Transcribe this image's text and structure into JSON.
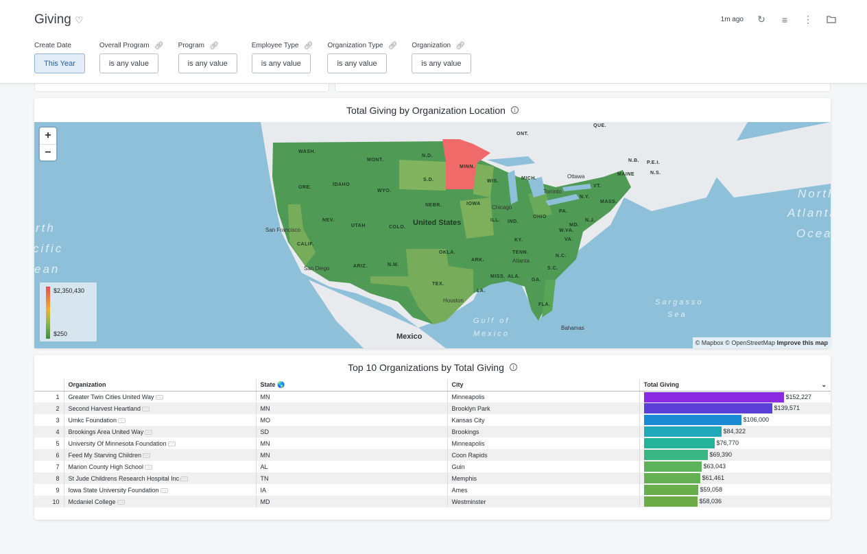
{
  "header": {
    "title": "Giving",
    "last_updated": "1m ago"
  },
  "filters": [
    {
      "label": "Create Date",
      "value": "This Year",
      "link": false,
      "active": true
    },
    {
      "label": "Overall Program",
      "value": "is any value",
      "link": true,
      "active": false
    },
    {
      "label": "Program",
      "value": "is any value",
      "link": true,
      "active": false
    },
    {
      "label": "Employee Type",
      "value": "is any value",
      "link": true,
      "active": false
    },
    {
      "label": "Organization Type",
      "value": "is any value",
      "link": true,
      "active": false
    },
    {
      "label": "Organization",
      "value": "is any value",
      "link": true,
      "active": false
    }
  ],
  "map_card": {
    "title": "Total Giving by Organization Location",
    "zoom_in": "+",
    "zoom_out": "−",
    "legend_max": "$2,350,430",
    "legend_min": "$250",
    "attribution": "© Mapbox © OpenStreetMap",
    "improve": "Improve this map",
    "colors": {
      "high": "#f06a6a",
      "low": "#3f9a4c",
      "water": "#8ec0d9",
      "land": "#e8e9ec"
    },
    "labels": {
      "states": [
        "WASH.",
        "MONT.",
        "N.D.",
        "MINN.",
        "ORE.",
        "IDAHO",
        "WYO.",
        "S.D.",
        "WIS.",
        "MICH.",
        "NEBR.",
        "IOWA",
        "NEV.",
        "UTAH",
        "COLO.",
        "ILL.",
        "IND.",
        "OHIO",
        "PA.",
        "N.Y.",
        "VT.",
        "MAINE",
        "MASS.",
        "N.J.",
        "MD.",
        "W.VA.",
        "VA.",
        "KY.",
        "CALIF.",
        "ARIZ.",
        "N.M.",
        "OKLA.",
        "ARK.",
        "TENN.",
        "N.C.",
        "S.C.",
        "TEX.",
        "LA.",
        "MISS.",
        "ALA.",
        "GA.",
        "FLA."
      ],
      "country": "United States",
      "mexico": "Mexico",
      "cities": [
        "San Francisco",
        "San Diego",
        "Houston",
        "Chicago",
        "Atlanta",
        "Toronto",
        "Ottawa",
        "Bahamas"
      ],
      "canada": [
        "ONT.",
        "QUE.",
        "N.B.",
        "P.E.I.",
        "N.S."
      ],
      "seas": [
        "Gulf of",
        "Mexico",
        "Sargasso",
        "Sea",
        "North",
        "Atlantic",
        "Ocean",
        "rth",
        "cific",
        "ean"
      ]
    }
  },
  "table_card": {
    "title": "Top 10 Organizations by Total Giving",
    "columns": [
      "Organization",
      "State",
      "City",
      "Total Giving"
    ],
    "state_icon": "globe-icon",
    "rows": [
      {
        "rank": "1",
        "organization": "Greater Twin Cities United Way",
        "state": "MN",
        "city": "Minneapolis",
        "total": "$152,227",
        "value": 152227,
        "color": "#8a2be2"
      },
      {
        "rank": "2",
        "organization": "Second Harvest Heartland",
        "state": "MN",
        "city": "Brooklyn Park",
        "total": "$139,571",
        "value": 139571,
        "color": "#5a3fd6"
      },
      {
        "rank": "3",
        "organization": "Umkc Foundation",
        "state": "MO",
        "city": "Kansas City",
        "total": "$106,000",
        "value": 106000,
        "color": "#1a8ad4"
      },
      {
        "rank": "4",
        "organization": "Brookings Area United Way",
        "state": "SD",
        "city": "Brookings",
        "total": "$84,322",
        "value": 84322,
        "color": "#1fa9b8"
      },
      {
        "rank": "5",
        "organization": "University Of Minnesota Foundation",
        "state": "MN",
        "city": "Minneapolis",
        "total": "$76,770",
        "value": 76770,
        "color": "#24b39a"
      },
      {
        "rank": "6",
        "organization": "Feed My Starving Children",
        "state": "MN",
        "city": "Coon Rapids",
        "total": "$69,390",
        "value": 69390,
        "color": "#3ab585"
      },
      {
        "rank": "7",
        "organization": "Marion County High School",
        "state": "AL",
        "city": "Guin",
        "total": "$63,043",
        "value": 63043,
        "color": "#5db35a"
      },
      {
        "rank": "8",
        "organization": "St Jude Childrens Research Hospital Inc",
        "state": "TN",
        "city": "Memphis",
        "total": "$61,461",
        "value": 61461,
        "color": "#64b052"
      },
      {
        "rank": "9",
        "organization": "Iowa State University Foundation",
        "state": "IA",
        "city": "Ames",
        "total": "$59,058",
        "value": 59058,
        "color": "#6aad4c"
      },
      {
        "rank": "10",
        "organization": "Mcdaniel College",
        "state": "MD",
        "city": "Westminster",
        "total": "$58,036",
        "value": 58036,
        "color": "#6dab47"
      }
    ]
  }
}
